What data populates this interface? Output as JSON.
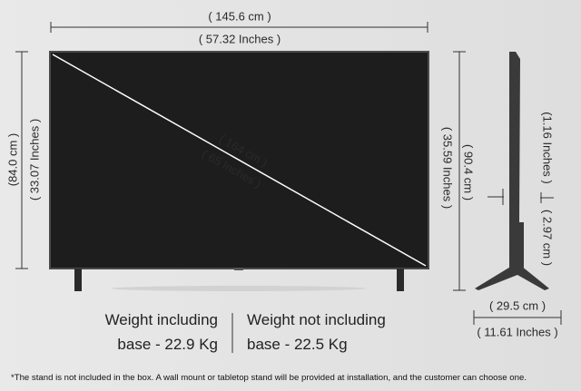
{
  "width": {
    "cm": "( 145.6 cm )",
    "inches": "( 57.32 Inches )"
  },
  "height": {
    "cm": "(84.0 cm )",
    "inches": "( 33.07 Inches )"
  },
  "diagonal": {
    "cm": "( 164 cm )",
    "inches": "( 65 Inches )"
  },
  "height_with_stand": {
    "cm": "( 90.4 cm )",
    "inches": "( 35.59 Inches )"
  },
  "depth": {
    "inches": "(1.16 Inches )",
    "cm": "( 2.97 cm )"
  },
  "stand_depth": {
    "cm": "( 29.5  cm )",
    "inches": "( 11.61 Inches )"
  },
  "weight": {
    "with_base_label": "Weight including",
    "with_base_value": "base - 22.9 Kg",
    "without_base_label": "Weight not including",
    "without_base_value": "base - 22.5 Kg"
  },
  "footnote": "*The stand is not included in the box. A wall mount or tabletop stand will be provided at installation, and the customer can choose one."
}
